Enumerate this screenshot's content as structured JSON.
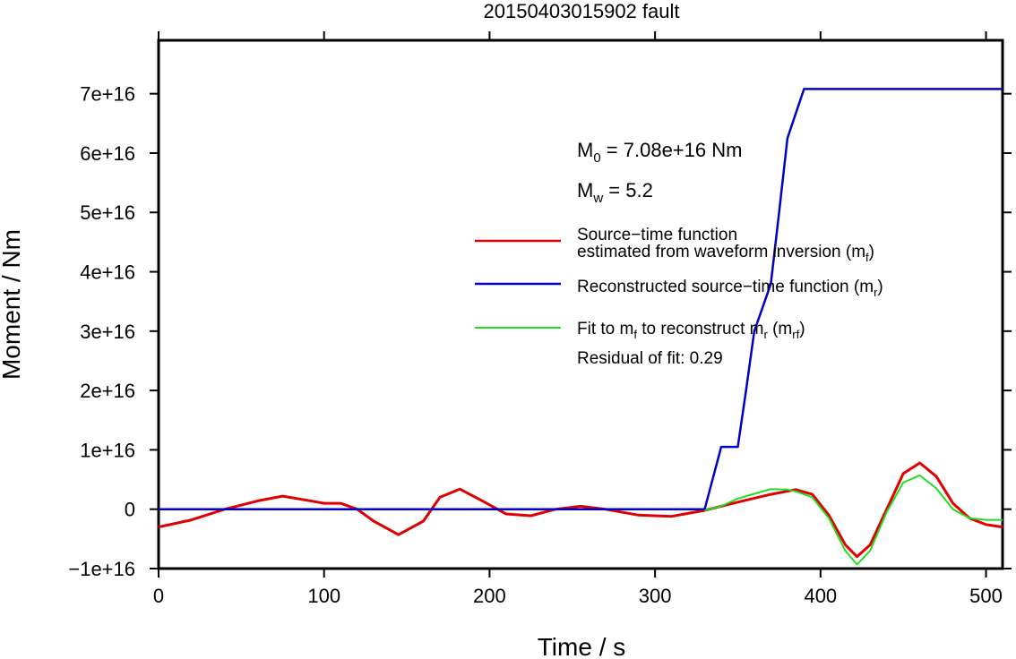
{
  "chart_data": {
    "type": "line",
    "title": "20150403015902 fault",
    "xlabel": "Time / s",
    "ylabel": "Moment / Nm",
    "xlim": [
      0,
      510
    ],
    "ylim": [
      -1e+16,
      7.9e+16
    ],
    "x_ticks": [
      0,
      100,
      200,
      300,
      400,
      500
    ],
    "x_tick_labels": [
      "0",
      "100",
      "200",
      "300",
      "400",
      "500"
    ],
    "y_ticks": [
      -1e+16,
      0,
      1e+16,
      2e+16,
      3e+16,
      4e+16,
      5e+16,
      6e+16,
      7e+16
    ],
    "y_tick_labels": [
      "−1e+16",
      "0",
      "1e+16",
      "2e+16",
      "3e+16",
      "4e+16",
      "5e+16",
      "6e+16",
      "7e+16"
    ],
    "grid": false,
    "legend_position": "right",
    "annotations": {
      "m0_main": "M",
      "m0_sub": "0",
      "m0_rest": " = 7.08e+16 Nm",
      "mw_main": "M",
      "mw_sub": "w",
      "mw_rest": " = 5.2",
      "residual": "Residual of fit: 0.29"
    },
    "legend": [
      {
        "lines": [
          "Source−time function",
          "estimated from waveform inversion (m",
          "f",
          ")"
        ],
        "color": "#e00000"
      },
      {
        "lines": [
          "Reconstructed source−time function (m",
          "r",
          ")"
        ],
        "color": "#0000c8"
      },
      {
        "lines": [
          "Fit to m",
          "f",
          " to reconstruct m",
          "r",
          " (m",
          "rf",
          ")"
        ],
        "color": "#22dd22"
      }
    ],
    "series": [
      {
        "color": "#e00000",
        "x": [
          0,
          20,
          40,
          60,
          75,
          90,
          100,
          110,
          120,
          130,
          145,
          160,
          170,
          182,
          195,
          210,
          225,
          240,
          255,
          270,
          290,
          310,
          330,
          350,
          370,
          385,
          395,
          405,
          415,
          422,
          430,
          440,
          450,
          460,
          470,
          480,
          490,
          500,
          510
        ],
        "y": [
          -3000000000000000.0,
          -1800000000000000.0,
          0.0,
          1400000000000000.0,
          2200000000000000.0,
          1500000000000000.0,
          1000000000000000.0,
          1000000000000000.0,
          0.0,
          -2000000000000000.0,
          -4300000000000000.0,
          -2000000000000000.0,
          2000000000000000.0,
          3400000000000000.0,
          1500000000000000.0,
          -800000000000000.0,
          -1100000000000000.0,
          0.0,
          500000000000000.0,
          0.0,
          -1000000000000000.0,
          -1200000000000000.0,
          -200000000000000.0,
          1200000000000000.0,
          2500000000000000.0,
          3300000000000000.0,
          2500000000000000.0,
          -1000000000000000.0,
          -6000000000000000.0,
          -8000000000000000.0,
          -6000000000000000.0,
          0.0,
          6000000000000000.0,
          7800000000000000.0,
          5500000000000000.0,
          1000000000000000.0,
          -1500000000000000.0,
          -2600000000000000.0,
          -3000000000000000.0
        ]
      },
      {
        "color": "#0000c8",
        "x": [
          0,
          330,
          340,
          350,
          355,
          360,
          365,
          370,
          375,
          380,
          390,
          510
        ],
        "y": [
          0,
          0,
          1.05e+16,
          1.05e+16,
          2e+16,
          3e+16,
          3.4e+16,
          3.8e+16,
          5e+16,
          6.25e+16,
          7.08e+16,
          7.08e+16
        ]
      },
      {
        "color": "#22dd22",
        "x": [
          330,
          340,
          350,
          360,
          370,
          380,
          385,
          395,
          405,
          415,
          422,
          430,
          440,
          450,
          460,
          470,
          480,
          490,
          500,
          510
        ],
        "y": [
          -200000000000000.0,
          500000000000000.0,
          1800000000000000.0,
          2600000000000000.0,
          3400000000000000.0,
          3300000000000000.0,
          3000000000000000.0,
          2000000000000000.0,
          -1500000000000000.0,
          -7000000000000000.0,
          -9300000000000000.0,
          -7000000000000000.0,
          -500000000000000.0,
          4500000000000000.0,
          5700000000000000.0,
          3500000000000000.0,
          0.0,
          -1500000000000000.0,
          -1800000000000000.0,
          -1800000000000000.0
        ]
      }
    ]
  }
}
